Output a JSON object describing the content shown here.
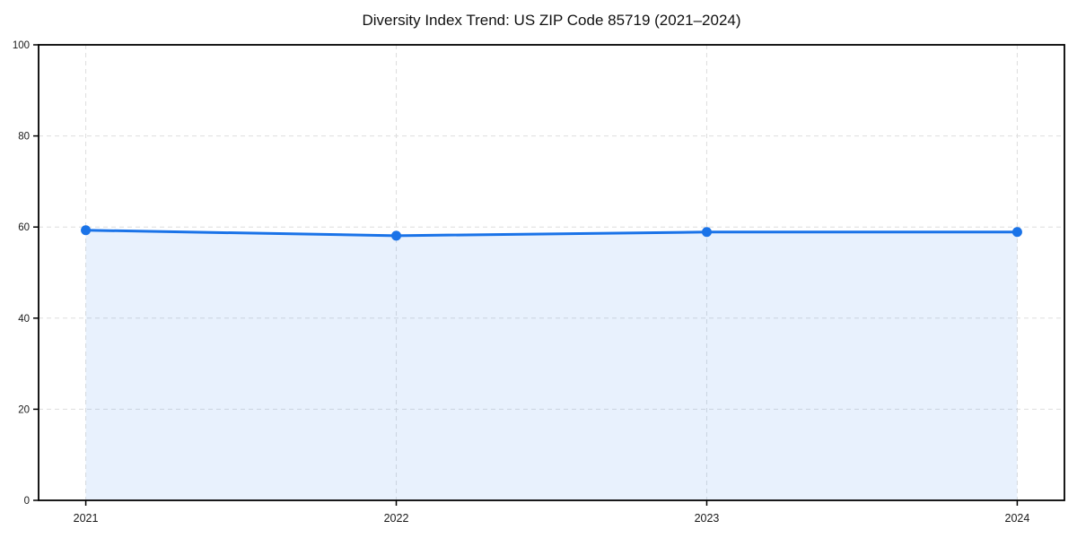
{
  "figure": {
    "background": "#ffffff"
  },
  "chart_data": {
    "type": "line",
    "title": "Diversity Index Trend: US ZIP Code 85719 (2021–2024)",
    "x": [
      "2021",
      "2022",
      "2023",
      "2024"
    ],
    "series": [
      {
        "name": "Diversity Index",
        "values": [
          59.3,
          58.1,
          58.9,
          58.9
        ]
      }
    ],
    "xlabel": "",
    "ylabel": "",
    "ylim": [
      0,
      100
    ],
    "yticks": [
      0,
      20,
      40,
      60,
      80,
      100
    ],
    "grid": "dashed-both-axes",
    "legend": "none",
    "area_fill": true,
    "x_pad_frac": 0.046,
    "colors": {
      "line": "#1a73e8",
      "fill_opacity": 0.1,
      "grid": "#dedede",
      "spine": "#000000",
      "tick_text": "#1a1a1a"
    }
  }
}
